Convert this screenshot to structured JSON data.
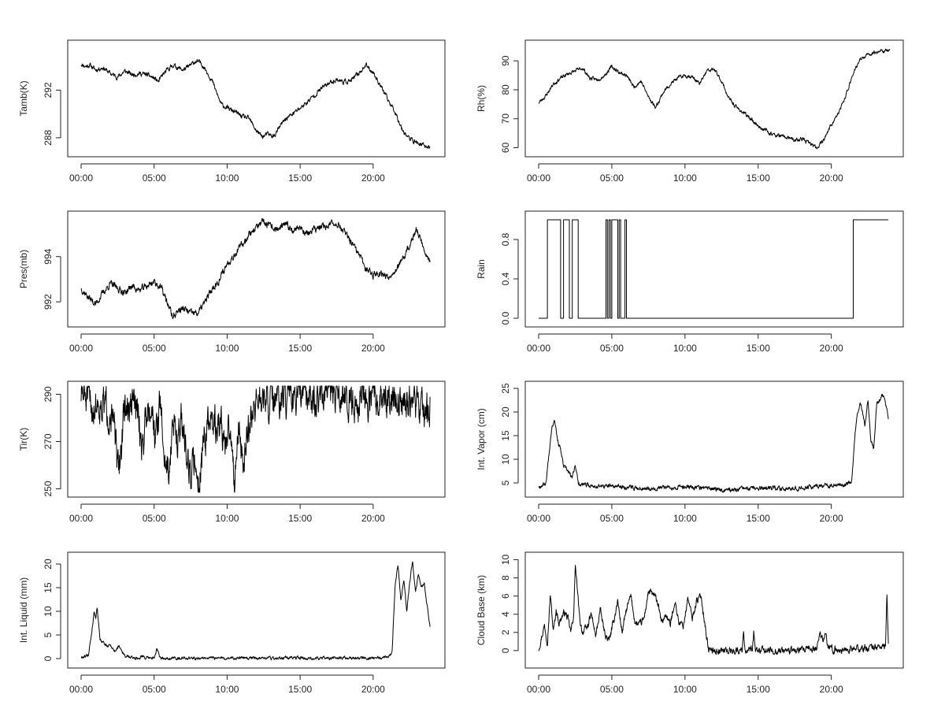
{
  "line_color": "#000000",
  "frame_color": "#222222",
  "background": "#ffffff",
  "chart_data": [
    {
      "id": "tamb",
      "type": "line",
      "title": "",
      "xlabel": "",
      "ylabel": "Tamb(K)",
      "xlim": [
        0,
        24
      ],
      "ylim": [
        286.8,
        295.8
      ],
      "xticks": [
        0,
        5,
        10,
        15,
        20
      ],
      "xtick_labels": [
        "00:00",
        "05:00",
        "10:00",
        "15:00",
        "20:00"
      ],
      "yticks": [
        288,
        292
      ],
      "ytick_labels": [
        "288",
        "292"
      ],
      "mode": "line",
      "x": [
        0,
        0.3,
        0.6,
        1.0,
        1.5,
        2.0,
        2.5,
        3.0,
        3.5,
        4.0,
        4.5,
        5.0,
        5.3,
        5.6,
        6.0,
        6.3,
        6.6,
        7.0,
        7.4,
        7.8,
        8.2,
        8.6,
        9.0,
        9.3,
        9.6,
        10.0,
        10.5,
        11.0,
        11.5,
        12.0,
        12.4,
        12.8,
        13.2,
        13.6,
        14.0,
        14.5,
        15.0,
        15.5,
        16.0,
        16.5,
        17.0,
        17.5,
        18.0,
        18.5,
        19.0,
        19.5,
        20.0,
        20.5,
        21.0,
        21.5,
        22.0,
        22.5,
        23.0,
        23.5,
        23.9
      ],
      "y": [
        294.2,
        294.0,
        294.1,
        293.7,
        293.9,
        293.4,
        293.1,
        293.6,
        293.3,
        293.4,
        293.3,
        293.0,
        292.7,
        293.3,
        293.8,
        294.1,
        293.9,
        293.7,
        294.0,
        294.4,
        294.3,
        293.6,
        292.7,
        291.7,
        290.8,
        290.5,
        290.2,
        289.8,
        289.6,
        288.6,
        288.1,
        288.3,
        288.1,
        288.9,
        289.6,
        290.0,
        290.5,
        291.0,
        291.6,
        292.2,
        292.6,
        292.9,
        292.7,
        292.8,
        293.4,
        294.1,
        293.5,
        292.4,
        291.2,
        290.2,
        288.7,
        287.9,
        287.6,
        287.3,
        287.2
      ],
      "n": 1200,
      "noise": 0.15,
      "seed": 11
    },
    {
      "id": "rh",
      "type": "line",
      "title": "",
      "xlabel": "",
      "ylabel": "Rh(%)",
      "xlim": [
        0,
        24
      ],
      "ylim": [
        58.5,
        95.5
      ],
      "xticks": [
        0,
        5,
        10,
        15,
        20
      ],
      "xtick_labels": [
        "00:00",
        "05:00",
        "10:00",
        "15:00",
        "20:00"
      ],
      "yticks": [
        60,
        70,
        80,
        90
      ],
      "ytick_labels": [
        "60",
        "70",
        "80",
        "90"
      ],
      "mode": "line",
      "x": [
        0,
        0.5,
        1.0,
        1.5,
        2.0,
        2.5,
        3.0,
        3.5,
        4.0,
        4.5,
        5.0,
        5.5,
        6.0,
        6.5,
        7.0,
        7.5,
        8.0,
        8.5,
        9.0,
        9.5,
        10.0,
        10.5,
        11.0,
        11.5,
        12.0,
        12.5,
        13.0,
        13.5,
        14.0,
        14.5,
        15.0,
        15.5,
        16.0,
        16.5,
        17.0,
        17.5,
        18.0,
        18.5,
        19.0,
        19.5,
        20.0,
        20.5,
        21.0,
        21.5,
        22.0,
        22.5,
        23.0,
        23.5,
        24.0
      ],
      "y": [
        75.5,
        78.0,
        82.0,
        84.0,
        85.5,
        86.5,
        87.5,
        84.0,
        83.5,
        85.0,
        88.0,
        86.0,
        85.0,
        81.0,
        83.0,
        77.5,
        74.0,
        79.0,
        82.0,
        84.0,
        85.0,
        84.5,
        82.0,
        86.5,
        87.0,
        83.0,
        77.0,
        74.0,
        72.0,
        70.0,
        67.5,
        66.0,
        64.5,
        64.0,
        63.5,
        62.5,
        63.0,
        61.5,
        60.0,
        63.0,
        68.0,
        72.0,
        78.0,
        86.0,
        90.5,
        92.0,
        93.0,
        93.5,
        93.5
      ],
      "n": 1200,
      "noise": 0.5,
      "seed": 23
    },
    {
      "id": "pres",
      "type": "line",
      "title": "",
      "xlabel": "",
      "ylabel": "Pres(mb)",
      "xlim": [
        0,
        24
      ],
      "ylim": [
        991.1,
        995.8
      ],
      "xticks": [
        0,
        5,
        10,
        15,
        20
      ],
      "xtick_labels": [
        "00:00",
        "05:00",
        "10:00",
        "15:00",
        "20:00"
      ],
      "yticks": [
        992,
        994
      ],
      "ytick_labels": [
        "992",
        "994"
      ],
      "mode": "line",
      "x": [
        0,
        0.5,
        1.0,
        1.5,
        2.0,
        2.5,
        3.0,
        3.5,
        4.0,
        4.5,
        5.0,
        5.5,
        6.0,
        6.3,
        6.6,
        7.0,
        7.5,
        8.0,
        8.5,
        9.0,
        9.5,
        10.0,
        10.5,
        11.0,
        11.5,
        12.0,
        12.5,
        13.0,
        13.5,
        14.0,
        14.5,
        15.0,
        15.5,
        16.0,
        16.5,
        17.0,
        17.5,
        18.0,
        18.5,
        19.0,
        19.5,
        20.0,
        20.5,
        21.0,
        21.5,
        22.0,
        22.5,
        23.0,
        23.5,
        23.9
      ],
      "y": [
        992.6,
        992.2,
        991.9,
        992.4,
        992.8,
        992.6,
        992.4,
        992.7,
        992.5,
        992.7,
        992.9,
        992.6,
        991.8,
        991.3,
        991.6,
        991.7,
        991.5,
        991.5,
        992.0,
        992.6,
        993.0,
        993.7,
        994.1,
        994.5,
        995.0,
        995.3,
        995.5,
        995.3,
        995.2,
        995.4,
        995.2,
        995.3,
        995.0,
        995.2,
        995.3,
        995.4,
        995.5,
        995.1,
        994.6,
        994.1,
        993.5,
        993.2,
        993.3,
        993.1,
        993.4,
        993.8,
        994.5,
        995.2,
        994.3,
        993.8
      ],
      "n": 1200,
      "noise": 0.12,
      "seed": 37
    },
    {
      "id": "rain",
      "type": "line",
      "title": "",
      "xlabel": "",
      "ylabel": "Rain",
      "xlim": [
        0,
        24
      ],
      "ylim": [
        -0.04,
        1.04
      ],
      "xticks": [
        0,
        5,
        10,
        15,
        20
      ],
      "xtick_labels": [
        "00:00",
        "05:00",
        "10:00",
        "15:00",
        "20:00"
      ],
      "yticks": [
        0,
        0.4,
        0.8
      ],
      "ytick_labels": [
        "0.0",
        "0.4",
        "0.8"
      ],
      "mode": "step",
      "x": [
        0,
        0.6,
        0.6,
        1.5,
        1.5,
        1.7,
        1.7,
        2.1,
        2.1,
        2.3,
        2.3,
        2.7,
        2.7,
        4.6,
        4.6,
        4.7,
        4.7,
        4.8,
        4.8,
        4.9,
        4.9,
        5.0,
        5.0,
        5.4,
        5.4,
        5.5,
        5.5,
        5.6,
        5.6,
        5.9,
        5.9,
        6.0,
        6.0,
        21.5,
        21.5,
        23.9
      ],
      "y": [
        0,
        0,
        1,
        1,
        0,
        0,
        1,
        1,
        0,
        0,
        1,
        1,
        0,
        0,
        1,
        1,
        0,
        0,
        1,
        1,
        0,
        0,
        1,
        1,
        0,
        0,
        1,
        1,
        0,
        0,
        1,
        1,
        0,
        0,
        1,
        1
      ],
      "n": 0,
      "noise": 0,
      "seed": 0
    },
    {
      "id": "tir",
      "type": "line",
      "title": "",
      "xlabel": "",
      "ylabel": "Tir(K)",
      "xlim": [
        0,
        24
      ],
      "ylim": [
        248.5,
        293.5
      ],
      "xticks": [
        0,
        5,
        10,
        15,
        20
      ],
      "xtick_labels": [
        "00:00",
        "05:00",
        "10:00",
        "15:00",
        "20:00"
      ],
      "yticks": [
        250,
        270,
        290
      ],
      "ytick_labels": [
        "250",
        "270",
        "290"
      ],
      "mode": "line",
      "x": [
        0,
        0.4,
        0.8,
        1.2,
        1.6,
        2.0,
        2.3,
        2.5,
        2.7,
        3.0,
        3.3,
        3.6,
        3.9,
        4.2,
        4.5,
        4.8,
        5.1,
        5.4,
        5.7,
        6.0,
        6.3,
        6.6,
        6.9,
        7.2,
        7.5,
        7.8,
        8.1,
        8.4,
        8.7,
        9.0,
        9.3,
        9.6,
        9.9,
        10.2,
        10.5,
        10.8,
        11.1,
        11.4,
        11.7,
        12.0,
        13.0,
        14.0,
        15.0,
        16.0,
        17.0,
        18.0,
        19.0,
        20.0,
        21.0,
        22.0,
        23.0,
        23.9
      ],
      "y": [
        290,
        288,
        284,
        287,
        285,
        283,
        275,
        256,
        265,
        285,
        283,
        287,
        281,
        267,
        285,
        287,
        271,
        287,
        263,
        258,
        276,
        274,
        277,
        268,
        256,
        262,
        252,
        271,
        276,
        278,
        276,
        277,
        266,
        276,
        255,
        278,
        259,
        274,
        283,
        287,
        286,
        288,
        288,
        289,
        289,
        289,
        288,
        288,
        288,
        287,
        286,
        282
      ],
      "n": 1200,
      "noise": 6,
      "seed": 51
    },
    {
      "id": "vapor",
      "type": "line",
      "title": "",
      "xlabel": "",
      "ylabel": "Int. Vapor (cm)",
      "xlim": [
        0,
        24
      ],
      "ylim": [
        3,
        25.5
      ],
      "xticks": [
        0,
        5,
        10,
        15,
        20
      ],
      "xtick_labels": [
        "00:00",
        "05:00",
        "10:00",
        "15:00",
        "20:00"
      ],
      "yticks": [
        5,
        10,
        15,
        20,
        25
      ],
      "ytick_labels": [
        "5",
        "10",
        "15",
        "20",
        "25"
      ],
      "mode": "line",
      "x": [
        0,
        0.5,
        0.7,
        0.9,
        1.1,
        1.3,
        1.5,
        1.7,
        2.0,
        2.3,
        2.5,
        2.7,
        3.0,
        3.5,
        4.0,
        5.0,
        6.0,
        7.0,
        8.0,
        9.0,
        10.0,
        11.0,
        12.0,
        13.0,
        14.0,
        15.0,
        16.0,
        17.0,
        18.0,
        19.0,
        20.0,
        21.0,
        21.4,
        21.6,
        21.8,
        22.0,
        22.3,
        22.5,
        22.7,
        22.9,
        23.1,
        23.3,
        23.5,
        23.7,
        23.9
      ],
      "y": [
        4.2,
        5.0,
        11.0,
        17.0,
        18.5,
        14.0,
        12.0,
        8.5,
        7.5,
        6.0,
        9.0,
        5.0,
        4.6,
        4.4,
        4.3,
        4.3,
        4.1,
        3.9,
        3.9,
        4.1,
        4.2,
        4.0,
        3.7,
        3.5,
        3.7,
        3.8,
        3.8,
        3.9,
        4.0,
        4.3,
        4.5,
        4.7,
        5.5,
        15.0,
        20.0,
        22.0,
        17.0,
        23.0,
        14.0,
        12.0,
        22.0,
        22.5,
        23.5,
        22.0,
        19.0
      ],
      "n": 1200,
      "noise": 0.35,
      "seed": 67
    },
    {
      "id": "liquid",
      "type": "line",
      "title": "",
      "xlabel": "",
      "ylabel": "Int. Liquid (mm)",
      "xlim": [
        0,
        24
      ],
      "ylim": [
        -1,
        21.5
      ],
      "xticks": [
        0,
        5,
        10,
        15,
        20
      ],
      "xtick_labels": [
        "00:00",
        "05:00",
        "10:00",
        "15:00",
        "20:00"
      ],
      "yticks": [
        0,
        5,
        10,
        15,
        20
      ],
      "ytick_labels": [
        "0",
        "5",
        "10",
        "15",
        "20"
      ],
      "mode": "line",
      "x": [
        0,
        0.5,
        0.7,
        0.9,
        1.0,
        1.1,
        1.3,
        1.5,
        1.8,
        2.0,
        2.3,
        2.6,
        3.0,
        3.5,
        4.0,
        4.2,
        4.4,
        5.0,
        5.2,
        5.4,
        6.0,
        7.0,
        8.0,
        9.0,
        10.0,
        11.0,
        12.0,
        13.0,
        14.0,
        15.0,
        16.0,
        17.0,
        18.0,
        19.0,
        20.0,
        21.0,
        21.3,
        21.5,
        21.7,
        21.9,
        22.1,
        22.3,
        22.5,
        22.7,
        22.9,
        23.1,
        23.3,
        23.5,
        23.7,
        23.9
      ],
      "y": [
        0.2,
        0.8,
        5.0,
        10.0,
        8.5,
        11.0,
        4.0,
        3.5,
        2.5,
        3.0,
        1.5,
        2.8,
        0.5,
        0.2,
        0.1,
        0.8,
        0.1,
        0.1,
        2.0,
        0.1,
        0.1,
        0.1,
        0.1,
        0.1,
        0.1,
        0.1,
        0.1,
        0.1,
        0.1,
        0.1,
        0.1,
        0.1,
        0.1,
        0.1,
        0.1,
        0.2,
        1.5,
        15.0,
        20.0,
        12.0,
        17.0,
        10.0,
        16.0,
        20.5,
        14.0,
        18.0,
        15.0,
        16.0,
        11.0,
        7.0
      ],
      "n": 1200,
      "noise": 0.25,
      "seed": 79
    },
    {
      "id": "cloudbase",
      "type": "line",
      "title": "",
      "xlabel": "",
      "ylabel": "Cloud Base (km)",
      "xlim": [
        0,
        24
      ],
      "ylim": [
        -1.4,
        10.3
      ],
      "xticks": [
        0,
        5,
        10,
        15,
        20
      ],
      "xtick_labels": [
        "00:00",
        "05:00",
        "10:00",
        "15:00",
        "20:00"
      ],
      "yticks": [
        0,
        2,
        4,
        6,
        8,
        10
      ],
      "ytick_labels": [
        "0",
        "2",
        "4",
        "6",
        "8",
        "10"
      ],
      "mode": "line",
      "x": [
        0,
        0.2,
        0.4,
        0.6,
        0.8,
        1.0,
        1.2,
        1.4,
        1.6,
        1.8,
        2.0,
        2.2,
        2.4,
        2.5,
        2.6,
        2.8,
        3.0,
        3.3,
        3.6,
        3.9,
        4.2,
        4.5,
        4.8,
        5.1,
        5.4,
        5.7,
        6.0,
        6.3,
        6.6,
        6.9,
        7.2,
        7.5,
        7.8,
        8.1,
        8.4,
        8.7,
        9.0,
        9.3,
        9.6,
        9.9,
        10.2,
        10.5,
        10.8,
        11.1,
        11.4,
        11.6,
        12.0,
        13.0,
        13.9,
        14.0,
        14.1,
        14.6,
        14.7,
        14.8,
        16.0,
        17.0,
        18.0,
        19.0,
        19.2,
        19.4,
        19.6,
        19.8,
        20.0,
        21.0,
        22.0,
        23.0,
        23.7,
        23.8,
        23.9
      ],
      "y": [
        0.2,
        1.5,
        2.8,
        1.0,
        6.2,
        2.0,
        4.5,
        3.0,
        3.8,
        4.2,
        3.5,
        2.0,
        4.0,
        9.5,
        7.5,
        3.5,
        2.0,
        2.5,
        4.0,
        1.5,
        4.5,
        2.0,
        1.0,
        3.0,
        5.5,
        2.0,
        4.5,
        6.0,
        3.0,
        2.8,
        3.5,
        6.5,
        6.2,
        5.5,
        3.0,
        4.0,
        2.8,
        5.5,
        3.0,
        2.8,
        5.8,
        3.5,
        5.5,
        6.0,
        2.5,
        0.1,
        0.0,
        0.0,
        0.0,
        2.4,
        0.0,
        0.0,
        1.9,
        0.0,
        0.0,
        0.0,
        0.0,
        0.2,
        2.0,
        1.2,
        2.1,
        0.2,
        0.1,
        0.1,
        0.2,
        0.4,
        0.4,
        6.4,
        0.4
      ],
      "n": 1200,
      "noise": 0.3,
      "seed": 97
    }
  ]
}
